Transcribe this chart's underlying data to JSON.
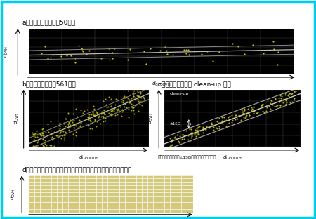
{
  "bg_color": "#ffffff",
  "border_color": "#00ccff",
  "panel_bg": "#000000",
  "scatter_color": "#cccc00",
  "line_color": "#aaaaaa",
  "grid_color": "#444444",
  "title_a": "a：単施設のモデル（50例）",
  "title_b": "b：ビッグモデル（561例）",
  "title_c": "c：ビッグモデルの clean-up の例",
  "title_d": "d：ビッグデータによって散布図内を埋め尽くしたビッグモデル",
  "note_c": "散布図から回帰直線±1SDの外側のプランを除外",
  "label_cleanup": "clean-up",
  "label_1sd": "±1SD"
}
